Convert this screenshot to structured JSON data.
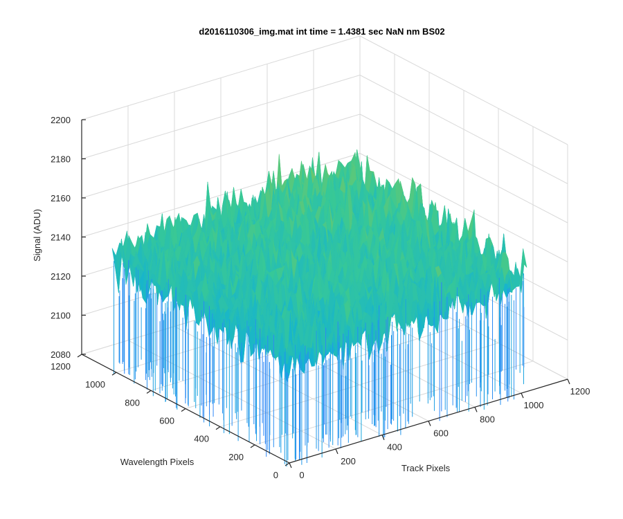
{
  "chart_data": {
    "type": "surface",
    "title": "d2016110306_img.mat int time = 1.4381 sec  NaN nm BS02",
    "xlabel": "Track Pixels",
    "ylabel": "Wavelength Pixels",
    "zlabel": "Signal (ADU)",
    "xlim": [
      0,
      1200
    ],
    "ylim": [
      0,
      1200
    ],
    "zlim": [
      2080,
      2200
    ],
    "x_ticks": [
      "0",
      "200",
      "400",
      "600",
      "800",
      "1000",
      "1200"
    ],
    "y_ticks": [
      "0",
      "200",
      "400",
      "600",
      "800",
      "1000",
      "1200"
    ],
    "z_ticks": [
      "2080",
      "2100",
      "2120",
      "2140",
      "2160",
      "2180",
      "2200"
    ],
    "surface": {
      "x_extent": [
        0,
        1024
      ],
      "y_extent": [
        0,
        1024
      ],
      "z_mean_approx": 2135,
      "z_range_approx": [
        2085,
        2185
      ],
      "colormap": "parula"
    },
    "grid": true
  }
}
